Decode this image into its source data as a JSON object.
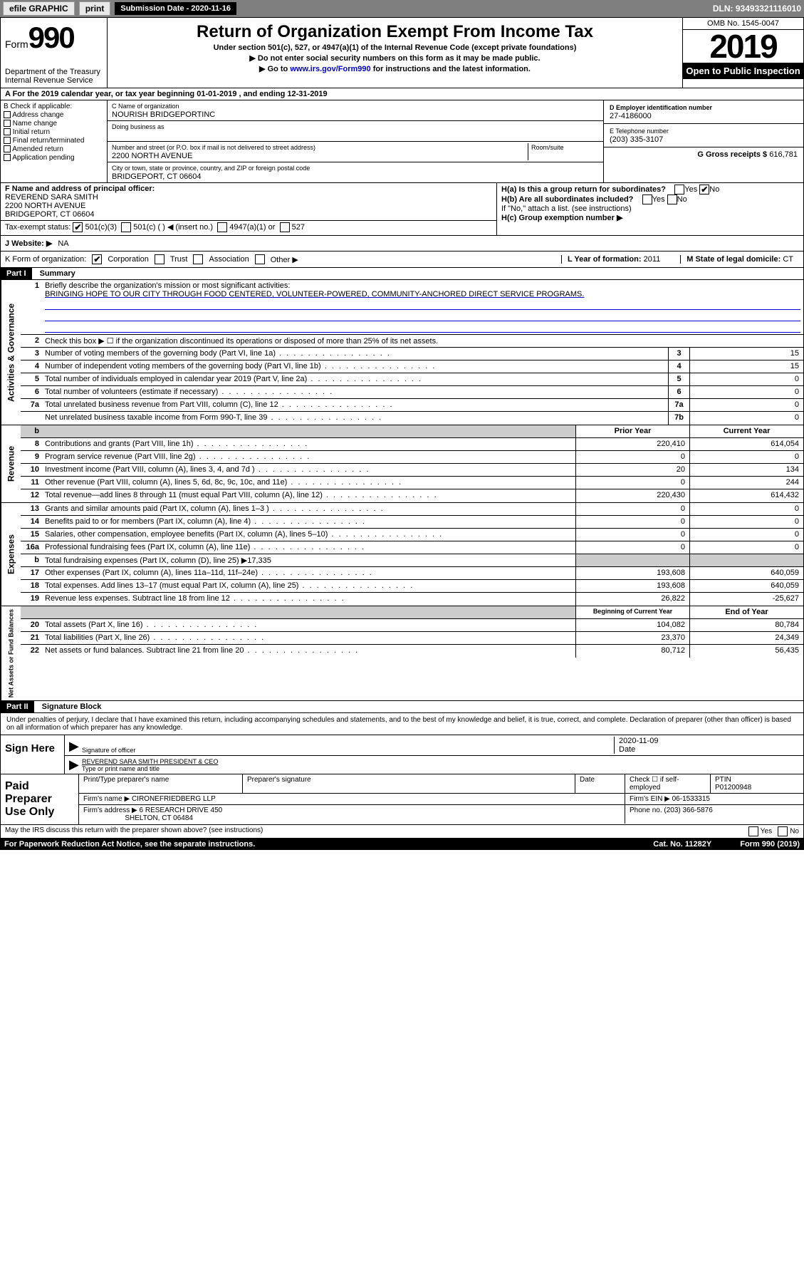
{
  "toolbar": {
    "efile": "efile GRAPHIC",
    "print": "print",
    "sub_label": "Submission Date - 2020-11-16",
    "dln": "DLN: 93493321116010"
  },
  "header": {
    "form_word": "Form",
    "form_num": "990",
    "dept": "Department of the Treasury",
    "irs": "Internal Revenue Service",
    "title": "Return of Organization Exempt From Income Tax",
    "subtitle": "Under section 501(c), 527, or 4947(a)(1) of the Internal Revenue Code (except private foundations)",
    "note1": "▶ Do not enter social security numbers on this form as it may be made public.",
    "note2_pre": "▶ Go to ",
    "note2_link": "www.irs.gov/Form990",
    "note2_post": " for instructions and the latest information.",
    "omb": "OMB No. 1545-0047",
    "year": "2019",
    "open": "Open to Public Inspection"
  },
  "period": {
    "prefix": "A For the 2019 calendar year, or tax year beginning ",
    "begin": "01-01-2019",
    "mid": " , and ending ",
    "end": "12-31-2019"
  },
  "boxB": {
    "label": "B Check if applicable:",
    "opts": [
      "Address change",
      "Name change",
      "Initial return",
      "Final return/terminated",
      "Amended return",
      "Application pending"
    ]
  },
  "boxC": {
    "name_label": "C Name of organization",
    "name": "NOURISH BRIDGEPORTINC",
    "dba_label": "Doing business as",
    "addr_label": "Number and street (or P.O. box if mail is not delivered to street address)",
    "room_label": "Room/suite",
    "addr": "2200 NORTH AVENUE",
    "city_label": "City or town, state or province, country, and ZIP or foreign postal code",
    "city": "BRIDGEPORT, CT  06604"
  },
  "boxDE": {
    "d_label": "D Employer identification number",
    "d_val": "27-4186000",
    "e_label": "E Telephone number",
    "e_val": "(203) 335-3107",
    "g_label": "G Gross receipts $ ",
    "g_val": "616,781"
  },
  "officer": {
    "f_label": "F Name and address of principal officer:",
    "name": "REVEREND SARA SMITH",
    "addr1": "2200 NORTH AVENUE",
    "addr2": "BRIDGEPORT, CT  06604",
    "ha": "H(a) Is this a group return for subordinates?",
    "hb": "H(b) Are all subordinates included?",
    "hb_note": "If \"No,\" attach a list. (see instructions)",
    "hc": "H(c) Group exemption number ▶",
    "yes": "Yes",
    "no": "No"
  },
  "status": {
    "label": "Tax-exempt status:",
    "opt1": "501(c)(3)",
    "opt2": "501(c) (  ) ◀ (insert no.)",
    "opt3": "4947(a)(1) or",
    "opt4": "527"
  },
  "website": {
    "label": "J   Website: ▶",
    "val": "NA"
  },
  "korg": {
    "label": "K Form of organization:",
    "opts": [
      "Corporation",
      "Trust",
      "Association",
      "Other ▶"
    ],
    "l_label": "L Year of formation: ",
    "l_val": "2011",
    "m_label": "M State of legal domicile: ",
    "m_val": "CT"
  },
  "part1": {
    "hdr": "Part I",
    "title": "Summary",
    "l1_label": "Briefly describe the organization's mission or most significant activities:",
    "l1_val": "BRINGING HOPE TO OUR CITY THROUGH FOOD CENTERED, VOLUNTEER-POWERED, COMMUNITY-ANCHORED DIRECT SERVICE PROGRAMS.",
    "l2": "Check this box ▶ ☐ if the organization discontinued its operations or disposed of more than 25% of its net assets.",
    "lines_gov": [
      {
        "n": "3",
        "t": "Number of voting members of the governing body (Part VI, line 1a)",
        "box": "3",
        "v": "15"
      },
      {
        "n": "4",
        "t": "Number of independent voting members of the governing body (Part VI, line 1b)",
        "box": "4",
        "v": "15"
      },
      {
        "n": "5",
        "t": "Total number of individuals employed in calendar year 2019 (Part V, line 2a)",
        "box": "5",
        "v": "0"
      },
      {
        "n": "6",
        "t": "Total number of volunteers (estimate if necessary)",
        "box": "6",
        "v": "0"
      },
      {
        "n": "7a",
        "t": "Total unrelated business revenue from Part VIII, column (C), line 12",
        "box": "7a",
        "v": "0"
      },
      {
        "n": "",
        "t": "Net unrelated business taxable income from Form 990-T, line 39",
        "box": "7b",
        "v": "0"
      }
    ],
    "prior_hdr": "Prior Year",
    "curr_hdr": "Current Year",
    "lines_rev": [
      {
        "n": "8",
        "t": "Contributions and grants (Part VIII, line 1h)",
        "p": "220,410",
        "c": "614,054"
      },
      {
        "n": "9",
        "t": "Program service revenue (Part VIII, line 2g)",
        "p": "0",
        "c": "0"
      },
      {
        "n": "10",
        "t": "Investment income (Part VIII, column (A), lines 3, 4, and 7d )",
        "p": "20",
        "c": "134"
      },
      {
        "n": "11",
        "t": "Other revenue (Part VIII, column (A), lines 5, 6d, 8c, 9c, 10c, and 11e)",
        "p": "0",
        "c": "244"
      },
      {
        "n": "12",
        "t": "Total revenue—add lines 8 through 11 (must equal Part VIII, column (A), line 12)",
        "p": "220,430",
        "c": "614,432"
      }
    ],
    "lines_exp": [
      {
        "n": "13",
        "t": "Grants and similar amounts paid (Part IX, column (A), lines 1–3 )",
        "p": "0",
        "c": "0"
      },
      {
        "n": "14",
        "t": "Benefits paid to or for members (Part IX, column (A), line 4)",
        "p": "0",
        "c": "0"
      },
      {
        "n": "15",
        "t": "Salaries, other compensation, employee benefits (Part IX, column (A), lines 5–10)",
        "p": "0",
        "c": "0"
      },
      {
        "n": "16a",
        "t": "Professional fundraising fees (Part IX, column (A), line 11e)",
        "p": "0",
        "c": "0"
      },
      {
        "n": "b",
        "t": "Total fundraising expenses (Part IX, column (D), line 25) ▶17,335",
        "p": "",
        "c": "",
        "shaded": true
      },
      {
        "n": "17",
        "t": "Other expenses (Part IX, column (A), lines 11a–11d, 11f–24e)",
        "p": "193,608",
        "c": "640,059"
      },
      {
        "n": "18",
        "t": "Total expenses. Add lines 13–17 (must equal Part IX, column (A), line 25)",
        "p": "193,608",
        "c": "640,059"
      },
      {
        "n": "19",
        "t": "Revenue less expenses. Subtract line 18 from line 12",
        "p": "26,822",
        "c": "-25,627"
      }
    ],
    "beg_hdr": "Beginning of Current Year",
    "end_hdr": "End of Year",
    "lines_net": [
      {
        "n": "20",
        "t": "Total assets (Part X, line 16)",
        "p": "104,082",
        "c": "80,784"
      },
      {
        "n": "21",
        "t": "Total liabilities (Part X, line 26)",
        "p": "23,370",
        "c": "24,349"
      },
      {
        "n": "22",
        "t": "Net assets or fund balances. Subtract line 21 from line 20",
        "p": "80,712",
        "c": "56,435"
      }
    ],
    "vtabs": {
      "gov": "Activities & Governance",
      "rev": "Revenue",
      "exp": "Expenses",
      "net": "Net Assets or Fund Balances"
    }
  },
  "part2": {
    "hdr": "Part II",
    "title": "Signature Block",
    "perjury": "Under penalties of perjury, I declare that I have examined this return, including accompanying schedules and statements, and to the best of my knowledge and belief, it is true, correct, and complete. Declaration of preparer (other than officer) is based on all information of which preparer has any knowledge.",
    "sign_here": "Sign Here",
    "sig_officer": "Signature of officer",
    "sig_date": "2020-11-09",
    "date_label": "Date",
    "officer_name": "REVEREND SARA SMITH  PRESIDENT & CEO",
    "name_label": "Type or print name and title",
    "paid": "Paid Preparer Use Only",
    "prep_name_label": "Print/Type preparer's name",
    "prep_sig_label": "Preparer's signature",
    "prep_date_label": "Date",
    "self_emp": "Check ☐ if self-employed",
    "ptin_label": "PTIN",
    "ptin": "P01200948",
    "firm_name_label": "Firm's name     ▶",
    "firm_name": "CIRONEFRIEDBERG LLP",
    "firm_ein_label": "Firm's EIN ▶",
    "firm_ein": "06-1533315",
    "firm_addr_label": "Firm's address ▶",
    "firm_addr": "6 RESEARCH DRIVE 450",
    "firm_city": "SHELTON, CT  06484",
    "phone_label": "Phone no. ",
    "phone": "(203) 366-5876",
    "discuss": "May the IRS discuss this return with the preparer shown above? (see instructions)"
  },
  "footer": {
    "notice": "For Paperwork Reduction Act Notice, see the separate instructions.",
    "cat": "Cat. No. 11282Y",
    "form": "Form 990 (2019)"
  }
}
